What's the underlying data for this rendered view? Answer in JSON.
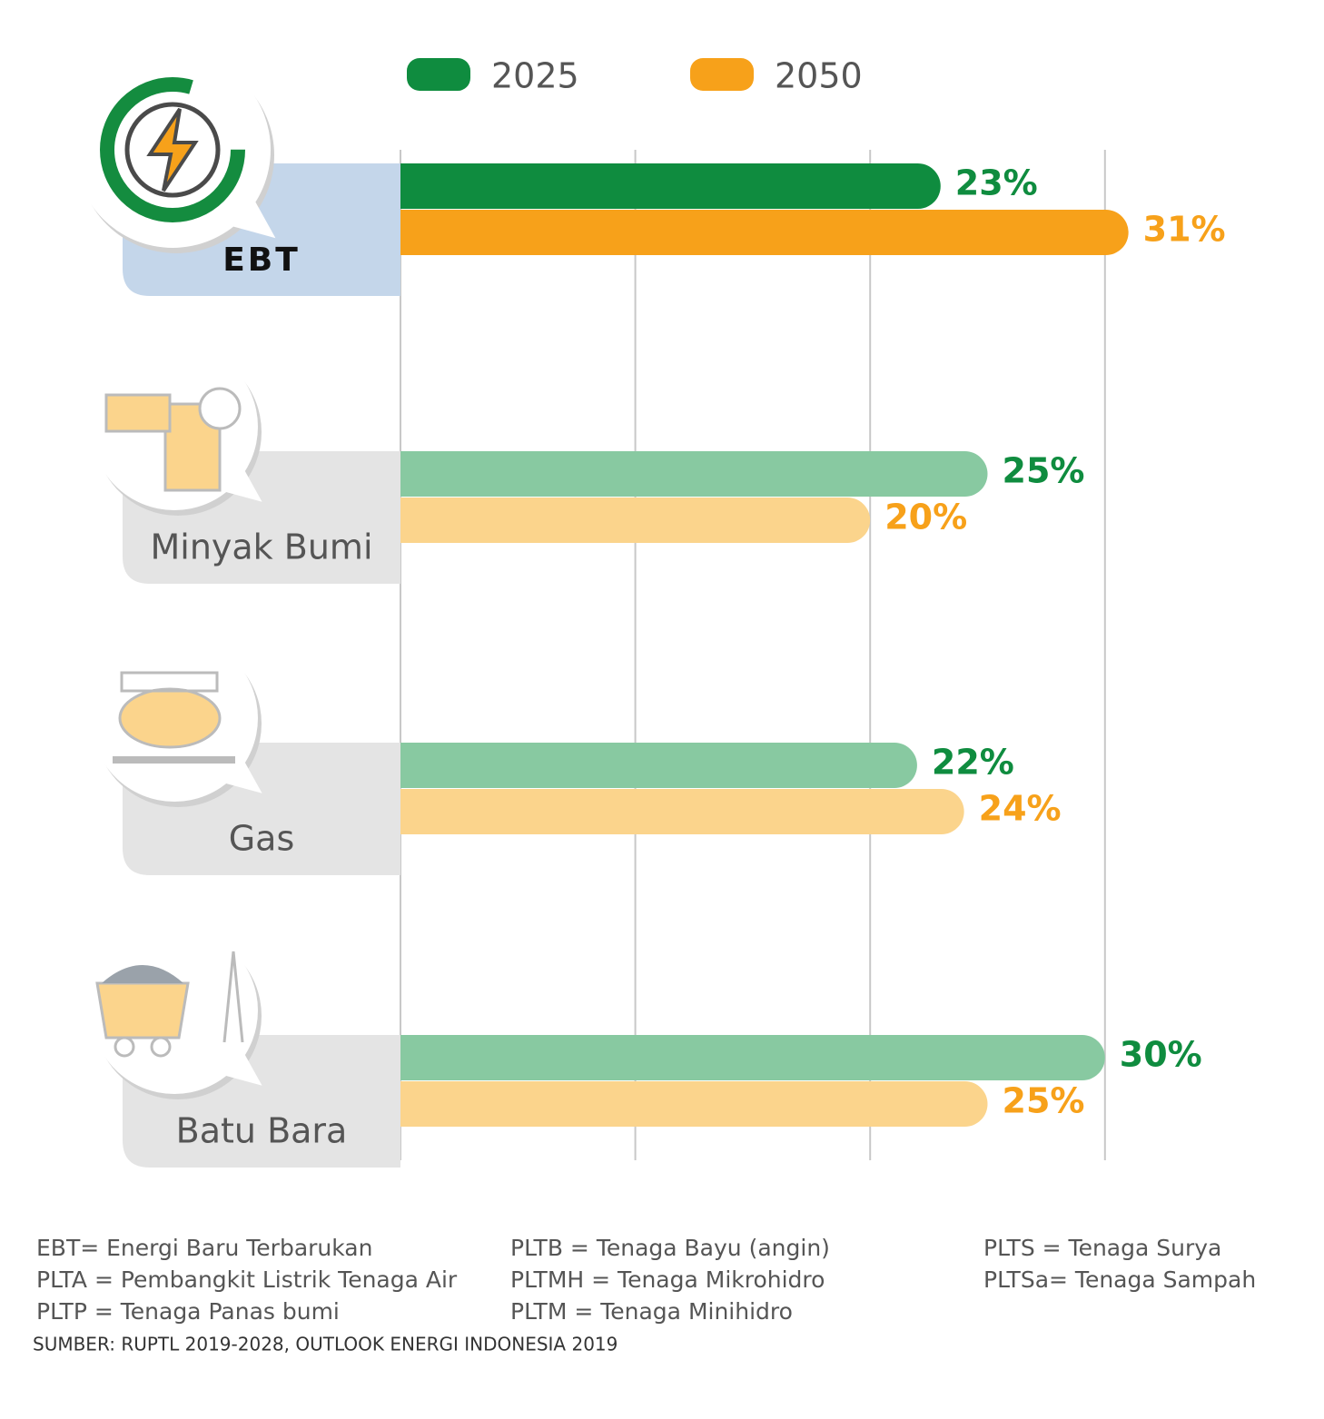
{
  "chart_data": {
    "type": "bar",
    "orientation": "horizontal",
    "categories": [
      "EBT",
      "Minyak Bumi",
      "Gas",
      "Batu Bara"
    ],
    "category_box_colors": [
      "#c4d6ea",
      "#e4e4e4",
      "#e4e4e4",
      "#e4e4e4"
    ],
    "series": [
      {
        "name": "2025",
        "color": "#0f8c3f",
        "bar_colors": [
          "#0f8c3f",
          "#88c9a1",
          "#88c9a1",
          "#88c9a1"
        ],
        "values": [
          23,
          25,
          22,
          30
        ],
        "value_labels": [
          "23%",
          "25%",
          "22%",
          "30%"
        ]
      },
      {
        "name": "2050",
        "color": "#f7a11a",
        "bar_colors": [
          "#f7a11a",
          "#fbd48c",
          "#fbd48c",
          "#fbd48c"
        ],
        "values": [
          31,
          20,
          24,
          25
        ],
        "value_labels": [
          "31%",
          "20%",
          "24%",
          "25%"
        ]
      }
    ],
    "xlim": [
      0,
      35
    ],
    "xticks": [
      0,
      10,
      20,
      30
    ],
    "grid": true
  },
  "notes": {
    "columns": [
      [
        "EBT= Energi Baru Terbarukan",
        "PLTA = Pembangkit Listrik Tenaga Air",
        "PLTP = Tenaga Panas bumi"
      ],
      [
        "PLTB = Tenaga Bayu (angin)",
        "PLTMH = Tenaga Mikrohidro",
        "PLTM = Tenaga Minihidro"
      ],
      [
        "PLTS = Tenaga Surya",
        "PLTSa= Tenaga Sampah"
      ]
    ],
    "source": "SUMBER: RUPTL 2019-2028, OUTLOOK ENERGI INDONESIA 2019"
  }
}
